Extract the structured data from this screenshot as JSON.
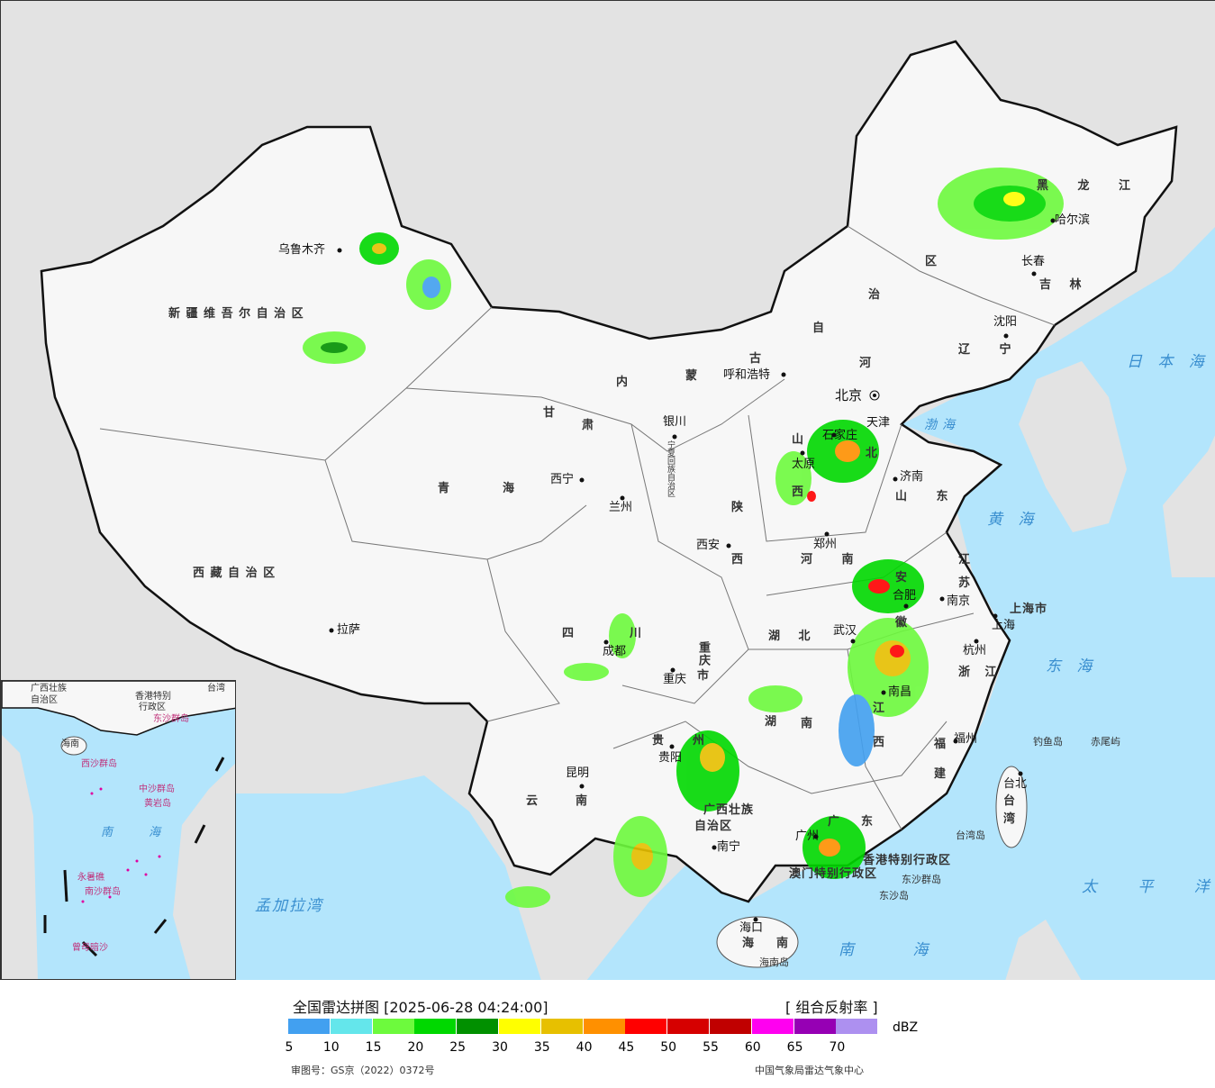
{
  "legend": {
    "title": "全国雷达拼图 [2025-06-28 04:24:00]",
    "product": "[ 组合反射率 ]",
    "unit": "dBZ",
    "colors": [
      "#42a0f0",
      "#64e6eb",
      "#6dfa3d",
      "#00d800",
      "#019000",
      "#ffff00",
      "#e7c000",
      "#ff9000",
      "#ff0000",
      "#d60000",
      "#c00000",
      "#ff00f0",
      "#9600b4",
      "#ad90f0"
    ],
    "ticks": [
      "5",
      "10",
      "15",
      "20",
      "25",
      "30",
      "35",
      "40",
      "45",
      "50",
      "55",
      "60",
      "65",
      "70"
    ],
    "approval": "审图号：GS京（2022）0372号",
    "source": "中国气象局雷达气象中心"
  },
  "map": {
    "colors": {
      "land": "#f7f7f7",
      "foreign": "#e3e3e3",
      "sea": "#b3e5fc",
      "border": "#111111"
    },
    "provinces": [
      "新 疆 维 吾 尔 自 治 区",
      "西 藏 自 治 区",
      "青",
      "海",
      "甘",
      "肃",
      "内",
      "蒙",
      "古",
      "自",
      "治",
      "区",
      "黑 龙 江",
      "吉 林",
      "辽 宁",
      "河",
      "北",
      "山",
      "西",
      "山 东",
      "河 南",
      "陕",
      "西",
      "四",
      "川",
      "重庆",
      "市",
      "湖 北",
      "安",
      "徽",
      "江",
      "苏",
      "浙 江",
      "江",
      "西",
      "湖",
      "南",
      "贵",
      "州",
      "云",
      "南",
      "广西壮族",
      "自治区",
      "广",
      "东",
      "福",
      "建",
      "台",
      "湾",
      "海",
      "南",
      "宁夏回族自治区",
      "上海市",
      "天津",
      "香港特别行政区",
      "澳门特别行政区"
    ],
    "cities": [
      "乌鲁木齐",
      "拉萨",
      "西宁",
      "兰州",
      "银川",
      "呼和浩特",
      "西安",
      "郑州",
      "石家庄",
      "太原",
      "济南",
      "合肥",
      "南京",
      "上海",
      "杭州",
      "武汉",
      "南昌",
      "福州",
      "台北",
      "成都",
      "重庆",
      "贵阳",
      "昆明",
      "南宁",
      "广州",
      "海口",
      "沈阳",
      "长春",
      "哈尔滨",
      "北京"
    ],
    "seas": [
      "渤海",
      "黄 海",
      "东 海",
      "南 海",
      "太 平 洋",
      "日 本 海",
      "孟加拉湾"
    ],
    "islands": [
      "钓鱼岛",
      "赤尾屿",
      "东沙群岛",
      "东沙岛",
      "台湾岛",
      "海南岛"
    ],
    "inset": [
      "广西壮族",
      "自治区",
      "香港特别",
      "行政区",
      "东沙群岛",
      "台湾",
      "海南",
      "西沙群岛",
      "中沙群岛",
      "黄岩岛",
      "南 海",
      "南沙群岛",
      "永暑礁",
      "曾母暗沙"
    ]
  }
}
